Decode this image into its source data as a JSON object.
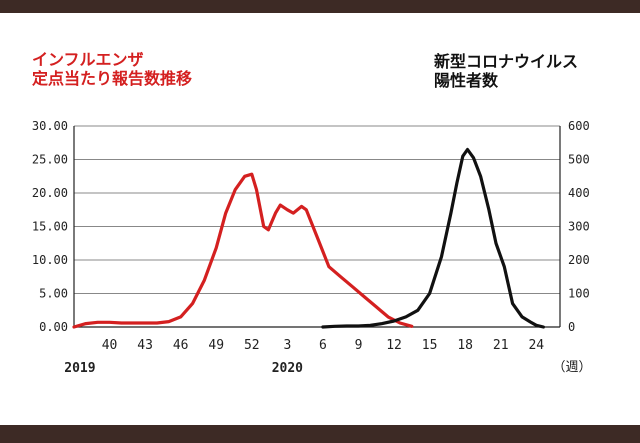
{
  "colors": {
    "flu": "#d42020",
    "covid": "#111111",
    "frame": "#3d2a25",
    "grid": "#888888"
  },
  "chart_data": {
    "type": "line",
    "title_left": [
      "インフルエンザ",
      "定点当たり報告数推移"
    ],
    "title_right": [
      "新型コロナウイルス",
      "陽性者数"
    ],
    "y_left": {
      "range": [
        0,
        30
      ],
      "ticks": [
        "0.00",
        "5.00",
        "10.00",
        "15.00",
        "20.00",
        "25.00",
        "30.00"
      ]
    },
    "y_right": {
      "range": [
        0,
        600
      ],
      "ticks": [
        "0",
        "100",
        "200",
        "300",
        "400",
        "500",
        "600"
      ]
    },
    "x_index_range": [
      0,
      41
    ],
    "x_ticks": [
      {
        "i": 3,
        "label": "40"
      },
      {
        "i": 6,
        "label": "43"
      },
      {
        "i": 9,
        "label": "46"
      },
      {
        "i": 12,
        "label": "49"
      },
      {
        "i": 15,
        "label": "52"
      },
      {
        "i": 18,
        "label": "3"
      },
      {
        "i": 21,
        "label": "6"
      },
      {
        "i": 24,
        "label": "9"
      },
      {
        "i": 27,
        "label": "12"
      },
      {
        "i": 30,
        "label": "15"
      },
      {
        "i": 33,
        "label": "18"
      },
      {
        "i": 36,
        "label": "21"
      },
      {
        "i": 39,
        "label": "24"
      }
    ],
    "year_labels": [
      {
        "i": 0.5,
        "label": "2019"
      },
      {
        "i": 18,
        "label": "2020"
      }
    ],
    "unit_label": "（週）",
    "series": [
      {
        "name": "インフルエンザ定点当たり報告数",
        "axis": "left",
        "points": [
          [
            0,
            0.0
          ],
          [
            1,
            0.5
          ],
          [
            2,
            0.7
          ],
          [
            3,
            0.7
          ],
          [
            4,
            0.6
          ],
          [
            5,
            0.6
          ],
          [
            6,
            0.6
          ],
          [
            7,
            0.6
          ],
          [
            8,
            0.8
          ],
          [
            9,
            1.5
          ],
          [
            10,
            3.5
          ],
          [
            11,
            7.0
          ],
          [
            12,
            11.8
          ],
          [
            12.8,
            17.0
          ],
          [
            13.6,
            20.5
          ],
          [
            14.4,
            22.5
          ],
          [
            15,
            22.8
          ],
          [
            15.4,
            20.5
          ],
          [
            16,
            15.0
          ],
          [
            16.4,
            14.5
          ],
          [
            17,
            17.0
          ],
          [
            17.4,
            18.2
          ],
          [
            18,
            17.5
          ],
          [
            18.5,
            17.0
          ],
          [
            19.2,
            18.0
          ],
          [
            19.6,
            17.5
          ],
          [
            20.5,
            13.5
          ],
          [
            21.5,
            9.0
          ],
          [
            22.5,
            7.5
          ],
          [
            23.5,
            6.0
          ],
          [
            24.5,
            4.5
          ],
          [
            25.5,
            3.0
          ],
          [
            26.5,
            1.5
          ],
          [
            27.5,
            0.6
          ],
          [
            28.5,
            0.1
          ]
        ]
      },
      {
        "name": "新型コロナウイルス陽性者数",
        "axis": "right",
        "points": [
          [
            21,
            0
          ],
          [
            22,
            2
          ],
          [
            23,
            3
          ],
          [
            24,
            3
          ],
          [
            25,
            5
          ],
          [
            26,
            10
          ],
          [
            27,
            18
          ],
          [
            28,
            30
          ],
          [
            29,
            50
          ],
          [
            30,
            100
          ],
          [
            31,
            210
          ],
          [
            31.8,
            340
          ],
          [
            32.3,
            430
          ],
          [
            32.8,
            510
          ],
          [
            33.2,
            530
          ],
          [
            33.7,
            505
          ],
          [
            34.3,
            450
          ],
          [
            35,
            350
          ],
          [
            35.6,
            250
          ],
          [
            36.3,
            180
          ],
          [
            37,
            70
          ],
          [
            37.8,
            30
          ],
          [
            38.5,
            15
          ],
          [
            39,
            5
          ],
          [
            39.6,
            0
          ]
        ]
      }
    ]
  }
}
